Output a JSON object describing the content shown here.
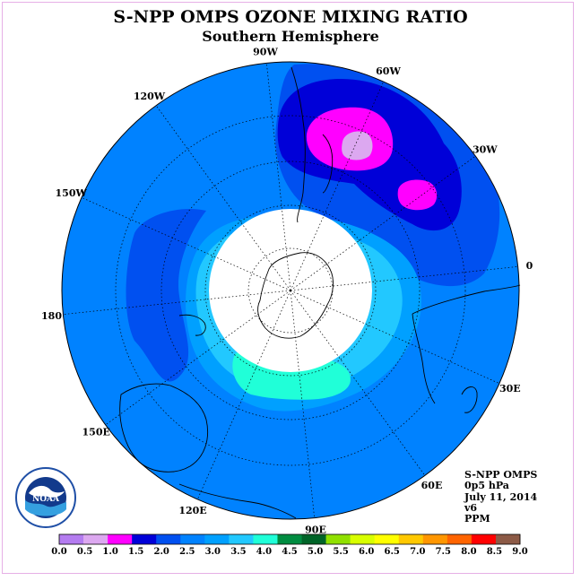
{
  "title": "S-NPP OMPS OZONE MIXING RATIO",
  "subtitle": "Southern Hemisphere",
  "meridian_labels": [
    {
      "text": "90W",
      "id": "lon-90w"
    },
    {
      "text": "60W",
      "id": "lon-60w"
    },
    {
      "text": "30W",
      "id": "lon-30w"
    },
    {
      "text": "0",
      "id": "lon-0"
    },
    {
      "text": "30E",
      "id": "lon-30e"
    },
    {
      "text": "60E",
      "id": "lon-60e"
    },
    {
      "text": "90E",
      "id": "lon-90e"
    },
    {
      "text": "120E",
      "id": "lon-120e"
    },
    {
      "text": "150E",
      "id": "lon-150e"
    },
    {
      "text": "180",
      "id": "lon-180"
    },
    {
      "text": "150W",
      "id": "lon-150w"
    },
    {
      "text": "120W",
      "id": "lon-120w"
    }
  ],
  "info": {
    "instrument": "S-NPP OMPS",
    "level": "0p5 hPa",
    "date": "July 11, 2014",
    "version": "v6",
    "units": "PPM"
  },
  "logo": {
    "text": "NOAA",
    "ring_text": "NATIONAL OCEANIC AND ATMOSPHERIC ADMINISTRATION · U.S. DEPARTMENT OF COMMERCE"
  },
  "colorbar": {
    "ticks": [
      "0.0",
      "0.5",
      "1.0",
      "1.5",
      "2.0",
      "2.5",
      "3.0",
      "3.5",
      "4.0",
      "4.5",
      "5.0",
      "5.5",
      "6.0",
      "6.5",
      "7.0",
      "7.5",
      "8.0",
      "8.5",
      "9.0"
    ],
    "colors": [
      "#b47cf0",
      "#dca8f0",
      "#ff00ff",
      "#0000d8",
      "#0050f0",
      "#0082ff",
      "#00a0ff",
      "#22c8ff",
      "#20ffd8",
      "#008c40",
      "#006428",
      "#90e000",
      "#d8ff00",
      "#ffff00",
      "#ffc800",
      "#ff9600",
      "#ff6400",
      "#ff0000",
      "#8c5a46"
    ]
  },
  "map_colors": {
    "band_1_0": "#ff00ff",
    "band_1_5": "#0000d8",
    "band_2_0": "#0050f0",
    "band_2_5": "#0082ff",
    "band_3_0": "#00a0ff",
    "band_3_5": "#22c8ff",
    "band_4_0": "#20ffd8",
    "band_0_5": "#dca8f0"
  }
}
